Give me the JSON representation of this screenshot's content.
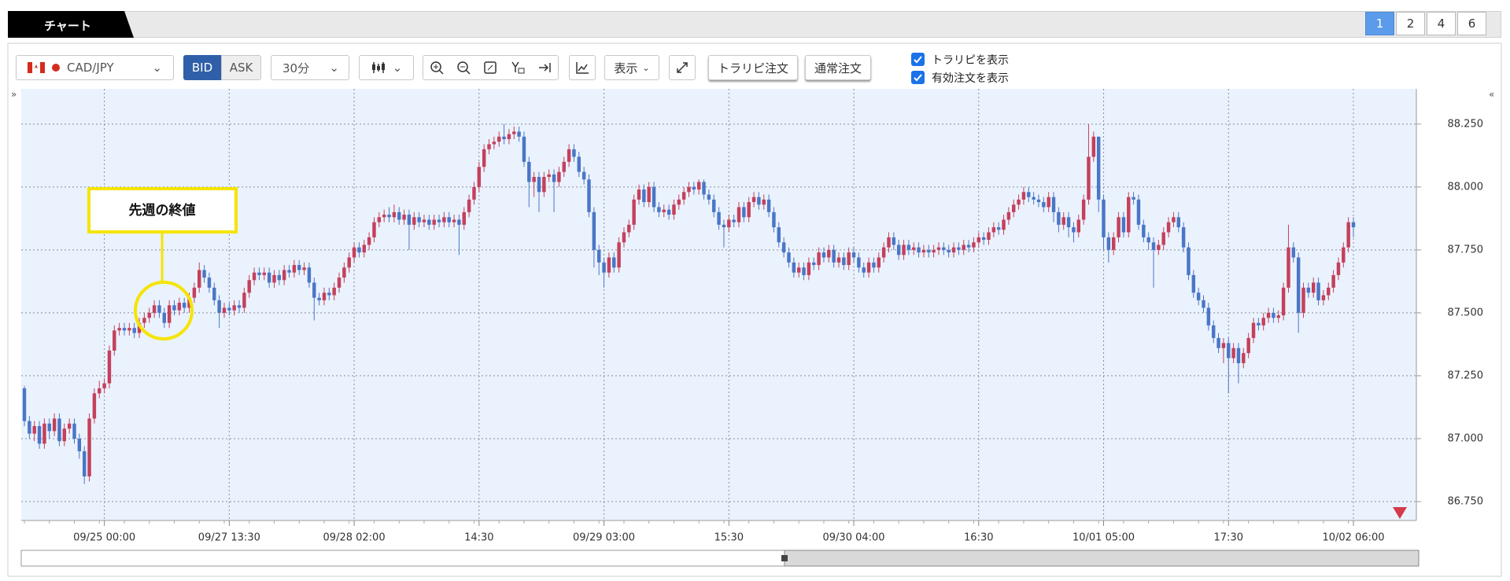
{
  "ui": {
    "tab": "チャート",
    "pages": [
      "1",
      "2",
      "4",
      "6"
    ],
    "pair": "CAD/JPY",
    "bid": "BID",
    "ask": "ASK",
    "interval": "30分",
    "display": "表示",
    "trarip_order": "トラリピ注文",
    "normal_order": "通常注文",
    "show_trarip": "トラリピを表示",
    "show_orders": "有効注文を表示"
  },
  "chart_data": {
    "type": "candlestick",
    "annotation": "先週の終値",
    "up_color": "#c4405c",
    "down_color": "#4a76c6",
    "grid": true,
    "categories": [
      null,
      null,
      null,
      null,
      null,
      null,
      null,
      null,
      null,
      null,
      null,
      null,
      null,
      null,
      null,
      null,
      "09/25 00:00",
      null,
      null,
      null,
      null,
      null,
      null,
      null,
      null,
      null,
      null,
      null,
      null,
      null,
      null,
      null,
      null,
      null,
      null,
      null,
      null,
      null,
      null,
      null,
      null,
      "09/27 13:30",
      null,
      null,
      null,
      null,
      null,
      null,
      null,
      null,
      null,
      null,
      null,
      null,
      null,
      null,
      null,
      null,
      null,
      null,
      null,
      null,
      null,
      null,
      null,
      null,
      "09/28 02:00",
      null,
      null,
      null,
      null,
      null,
      null,
      null,
      null,
      null,
      null,
      null,
      null,
      null,
      null,
      null,
      null,
      null,
      null,
      null,
      null,
      null,
      null,
      null,
      null,
      "14:30",
      null,
      null,
      null,
      null,
      null,
      null,
      null,
      null,
      null,
      null,
      null,
      null,
      null,
      null,
      null,
      null,
      null,
      null,
      null,
      null,
      null,
      null,
      null,
      null,
      "09/29 03:00",
      null,
      null,
      null,
      null,
      null,
      null,
      null,
      null,
      null,
      null,
      null,
      null,
      null,
      null,
      null,
      null,
      null,
      null,
      null,
      null,
      null,
      null,
      null,
      null,
      "15:30",
      null,
      null,
      null,
      null,
      null,
      null,
      null,
      null,
      null,
      null,
      null,
      null,
      null,
      null,
      null,
      null,
      null,
      null,
      null,
      null,
      null,
      null,
      null,
      null,
      "09/30 04:00",
      null,
      null,
      null,
      null,
      null,
      null,
      null,
      null,
      null,
      null,
      null,
      null,
      null,
      null,
      null,
      null,
      null,
      null,
      null,
      null,
      null,
      null,
      null,
      null,
      "16:30",
      null,
      null,
      null,
      null,
      null,
      null,
      null,
      null,
      null,
      null,
      null,
      null,
      null,
      null,
      null,
      null,
      null,
      null,
      null,
      null,
      null,
      null,
      null,
      null,
      "10/01 05:00",
      null,
      null,
      null,
      null,
      null,
      null,
      null,
      null,
      null,
      null,
      null,
      null,
      null,
      null,
      null,
      null,
      null,
      null,
      null,
      null,
      null,
      null,
      null,
      null,
      "17:30",
      null,
      null,
      null,
      null,
      null,
      null,
      null,
      null,
      null,
      null,
      null,
      null,
      null,
      null,
      null,
      null,
      null,
      null,
      null,
      null,
      null,
      null,
      null,
      null,
      "10/02 06:00"
    ],
    "open": [
      87.2,
      87.07,
      87.02,
      87.05,
      86.98,
      87.06,
      87.03,
      87.08,
      86.99,
      87.04,
      87.06,
      87.0,
      86.95,
      86.85,
      87.08,
      87.18,
      87.2,
      87.22,
      87.35,
      87.43,
      87.44,
      87.43,
      87.44,
      87.42,
      87.46,
      87.48,
      87.5,
      87.53,
      87.5,
      87.46,
      87.53,
      87.51,
      87.54,
      87.52,
      87.56,
      87.6,
      87.67,
      87.64,
      87.6,
      87.55,
      87.5,
      87.52,
      87.51,
      87.53,
      87.52,
      87.58,
      87.63,
      87.66,
      87.65,
      87.66,
      87.62,
      87.65,
      87.63,
      87.67,
      87.66,
      87.69,
      87.67,
      87.68,
      87.62,
      87.56,
      87.55,
      87.58,
      87.57,
      87.6,
      87.64,
      87.68,
      87.72,
      87.76,
      87.74,
      87.77,
      87.8,
      87.86,
      87.88,
      87.89,
      87.88,
      87.9,
      87.87,
      87.89,
      87.85,
      87.88,
      87.86,
      87.87,
      87.85,
      87.87,
      87.86,
      87.88,
      87.86,
      87.87,
      87.85,
      87.9,
      87.95,
      88.0,
      88.08,
      88.15,
      88.17,
      88.18,
      88.2,
      88.19,
      88.21,
      88.22,
      88.2,
      88.1,
      88.02,
      88.04,
      87.98,
      88.04,
      88.05,
      88.02,
      88.06,
      88.1,
      88.15,
      88.12,
      88.06,
      88.03,
      87.9,
      87.75,
      87.7,
      87.66,
      87.72,
      87.68,
      87.78,
      87.82,
      87.85,
      87.95,
      87.99,
      87.94,
      88.0,
      87.92,
      87.9,
      87.91,
      87.89,
      87.93,
      87.95,
      87.98,
      88.0,
      87.99,
      88.02,
      87.97,
      87.95,
      87.9,
      87.85,
      87.84,
      87.87,
      87.86,
      87.92,
      87.88,
      87.94,
      87.96,
      87.93,
      87.95,
      87.9,
      87.84,
      87.78,
      87.74,
      87.7,
      87.66,
      87.68,
      87.65,
      87.7,
      87.69,
      87.74,
      87.72,
      87.75,
      87.7,
      87.72,
      87.69,
      87.74,
      87.72,
      87.68,
      87.66,
      87.7,
      87.68,
      87.72,
      87.76,
      87.8,
      87.77,
      87.73,
      87.77,
      87.75,
      87.76,
      87.74,
      87.75,
      87.74,
      87.75,
      87.76,
      87.75,
      87.74,
      87.76,
      87.75,
      87.77,
      87.76,
      87.78,
      87.8,
      87.79,
      87.82,
      87.84,
      87.83,
      87.87,
      87.9,
      87.93,
      87.95,
      87.98,
      87.96,
      87.95,
      87.94,
      87.92,
      87.96,
      87.9,
      87.85,
      87.88,
      87.84,
      87.82,
      87.87,
      87.95,
      88.12,
      88.2,
      87.95,
      87.8,
      87.75,
      87.8,
      87.88,
      87.82,
      87.96,
      87.95,
      87.85,
      87.8,
      87.78,
      87.75,
      87.77,
      87.82,
      87.86,
      87.88,
      87.84,
      87.76,
      87.65,
      87.58,
      87.55,
      87.52,
      87.45,
      87.4,
      87.36,
      87.38,
      87.32,
      87.36,
      87.3,
      87.34,
      87.4,
      87.46,
      87.45,
      87.48,
      87.5,
      87.48,
      87.49,
      87.6,
      87.76,
      87.72,
      87.5,
      87.6,
      87.58,
      87.62,
      87.55,
      87.57,
      87.6,
      87.65,
      87.7,
      87.76,
      87.86
    ],
    "high": [
      87.21,
      87.09,
      87.07,
      87.07,
      87.08,
      87.08,
      87.1,
      87.1,
      87.06,
      87.08,
      87.08,
      87.02,
      86.97,
      87.1,
      87.2,
      87.23,
      87.24,
      87.37,
      87.45,
      87.46,
      87.46,
      87.46,
      87.46,
      87.48,
      87.5,
      87.52,
      87.55,
      87.55,
      87.52,
      87.55,
      87.55,
      87.56,
      87.56,
      87.58,
      87.62,
      87.7,
      87.69,
      87.66,
      87.62,
      87.57,
      87.54,
      87.54,
      87.55,
      87.55,
      87.6,
      87.65,
      87.68,
      87.68,
      87.68,
      87.68,
      87.67,
      87.67,
      87.69,
      87.69,
      87.71,
      87.71,
      87.7,
      87.7,
      87.64,
      87.58,
      87.6,
      87.6,
      87.62,
      87.66,
      87.7,
      87.74,
      87.78,
      87.78,
      87.79,
      87.82,
      87.88,
      87.9,
      87.91,
      87.92,
      87.93,
      87.92,
      87.91,
      87.91,
      87.9,
      87.9,
      87.89,
      87.89,
      87.89,
      87.89,
      87.9,
      87.9,
      87.89,
      87.89,
      87.92,
      87.97,
      88.02,
      88.1,
      88.17,
      88.19,
      88.2,
      88.22,
      88.25,
      88.23,
      88.24,
      88.24,
      88.22,
      88.12,
      88.06,
      88.06,
      88.06,
      88.07,
      88.07,
      88.08,
      88.12,
      88.17,
      88.17,
      88.14,
      88.08,
      88.05,
      87.92,
      87.77,
      87.72,
      87.74,
      87.74,
      87.8,
      87.84,
      87.87,
      87.97,
      88.01,
      88.01,
      88.02,
      88.02,
      87.94,
      87.93,
      87.93,
      87.95,
      87.97,
      88.0,
      88.02,
      88.02,
      88.03,
      88.03,
      87.99,
      87.97,
      87.92,
      87.87,
      87.89,
      87.89,
      87.94,
      87.94,
      87.96,
      87.98,
      87.98,
      87.97,
      87.97,
      87.92,
      87.86,
      87.8,
      87.76,
      87.72,
      87.7,
      87.7,
      87.72,
      87.72,
      87.76,
      87.76,
      87.77,
      87.77,
      87.74,
      87.74,
      87.76,
      87.76,
      87.74,
      87.7,
      87.72,
      87.72,
      87.74,
      87.78,
      87.82,
      87.82,
      87.79,
      87.79,
      87.79,
      87.78,
      87.78,
      87.77,
      87.77,
      87.77,
      87.78,
      87.78,
      87.77,
      87.78,
      87.78,
      87.79,
      87.79,
      87.8,
      87.82,
      87.82,
      87.84,
      87.86,
      87.86,
      87.89,
      87.92,
      87.95,
      87.97,
      88.0,
      88.0,
      87.98,
      87.97,
      87.96,
      87.98,
      87.98,
      87.92,
      87.9,
      87.9,
      87.86,
      87.89,
      87.97,
      88.25,
      88.22,
      88.2,
      87.97,
      87.82,
      87.82,
      87.9,
      87.9,
      87.98,
      87.98,
      87.97,
      87.87,
      87.82,
      87.8,
      87.79,
      87.84,
      87.88,
      87.9,
      87.9,
      87.86,
      87.78,
      87.67,
      87.6,
      87.57,
      87.54,
      87.47,
      87.42,
      87.4,
      87.4,
      87.38,
      87.38,
      87.36,
      87.42,
      87.48,
      87.48,
      87.5,
      87.52,
      87.52,
      87.51,
      87.62,
      87.85,
      87.78,
      87.74,
      87.62,
      87.62,
      87.64,
      87.64,
      87.59,
      87.62,
      87.67,
      87.72,
      87.78,
      87.88,
      87.88
    ],
    "low": [
      87.05,
      87.0,
      86.99,
      86.96,
      86.96,
      87.0,
      87.01,
      86.97,
      86.97,
      87.02,
      86.98,
      86.92,
      86.82,
      86.83,
      87.06,
      87.16,
      87.18,
      87.2,
      87.33,
      87.41,
      87.41,
      87.41,
      87.4,
      87.4,
      87.44,
      87.46,
      87.48,
      87.48,
      87.44,
      87.44,
      87.49,
      87.49,
      87.5,
      87.5,
      87.54,
      87.58,
      87.62,
      87.58,
      87.53,
      87.44,
      87.48,
      87.49,
      87.49,
      87.5,
      87.5,
      87.56,
      87.61,
      87.63,
      87.63,
      87.6,
      87.6,
      87.61,
      87.61,
      87.64,
      87.64,
      87.65,
      87.65,
      87.6,
      87.47,
      87.53,
      87.53,
      87.55,
      87.55,
      87.58,
      87.62,
      87.66,
      87.7,
      87.72,
      87.72,
      87.75,
      87.78,
      87.84,
      87.86,
      87.86,
      87.86,
      87.85,
      87.85,
      87.75,
      87.83,
      87.84,
      87.84,
      87.83,
      87.83,
      87.84,
      87.84,
      87.84,
      87.84,
      87.73,
      87.83,
      87.88,
      87.93,
      87.98,
      88.06,
      88.13,
      88.15,
      88.16,
      88.17,
      88.17,
      88.19,
      88.18,
      88.08,
      87.92,
      87.96,
      87.9,
      87.96,
      88.02,
      87.9,
      88.0,
      88.04,
      88.08,
      88.1,
      88.04,
      88.01,
      87.88,
      87.68,
      87.65,
      87.6,
      87.64,
      87.66,
      87.66,
      87.76,
      87.8,
      87.83,
      87.93,
      87.92,
      87.92,
      87.9,
      87.88,
      87.88,
      87.87,
      87.87,
      87.91,
      87.93,
      87.96,
      87.97,
      87.97,
      87.95,
      87.93,
      87.88,
      87.83,
      87.76,
      87.82,
      87.84,
      87.84,
      87.86,
      87.86,
      87.92,
      87.91,
      87.91,
      87.88,
      87.82,
      87.76,
      87.72,
      87.68,
      87.64,
      87.64,
      87.63,
      87.63,
      87.67,
      87.67,
      87.7,
      87.7,
      87.68,
      87.68,
      87.67,
      87.67,
      87.7,
      87.66,
      87.64,
      87.64,
      87.66,
      87.66,
      87.7,
      87.74,
      87.75,
      87.71,
      87.71,
      87.73,
      87.73,
      87.72,
      87.72,
      87.72,
      87.72,
      87.73,
      87.73,
      87.72,
      87.72,
      87.73,
      87.73,
      87.74,
      87.74,
      87.76,
      87.77,
      87.77,
      87.8,
      87.81,
      87.81,
      87.85,
      87.88,
      87.91,
      87.93,
      87.94,
      87.93,
      87.92,
      87.9,
      87.9,
      87.86,
      87.82,
      87.83,
      87.8,
      87.78,
      87.8,
      87.85,
      87.93,
      88.1,
      87.9,
      87.75,
      87.7,
      87.73,
      87.78,
      87.8,
      87.8,
      87.93,
      87.83,
      87.78,
      87.75,
      87.6,
      87.73,
      87.75,
      87.8,
      87.84,
      87.82,
      87.74,
      87.63,
      87.56,
      87.53,
      87.5,
      87.43,
      87.38,
      87.34,
      87.3,
      87.18,
      87.3,
      87.22,
      87.28,
      87.32,
      87.38,
      87.43,
      87.43,
      87.46,
      87.46,
      87.46,
      87.47,
      87.58,
      87.7,
      87.42,
      87.48,
      87.56,
      87.56,
      87.53,
      87.53,
      87.55,
      87.58,
      87.63,
      87.68,
      87.74,
      87.8
    ],
    "close": [
      87.07,
      87.02,
      87.05,
      86.98,
      87.06,
      87.03,
      87.08,
      86.99,
      87.04,
      87.06,
      87.0,
      86.95,
      86.85,
      87.08,
      87.18,
      87.2,
      87.22,
      87.35,
      87.43,
      87.44,
      87.43,
      87.44,
      87.42,
      87.46,
      87.48,
      87.5,
      87.53,
      87.5,
      87.46,
      87.53,
      87.51,
      87.54,
      87.52,
      87.56,
      87.6,
      87.67,
      87.64,
      87.6,
      87.55,
      87.5,
      87.52,
      87.51,
      87.53,
      87.52,
      87.58,
      87.63,
      87.66,
      87.65,
      87.66,
      87.62,
      87.65,
      87.63,
      87.67,
      87.66,
      87.69,
      87.67,
      87.68,
      87.62,
      87.56,
      87.55,
      87.58,
      87.57,
      87.6,
      87.64,
      87.68,
      87.72,
      87.76,
      87.74,
      87.77,
      87.8,
      87.86,
      87.88,
      87.89,
      87.88,
      87.9,
      87.87,
      87.89,
      87.85,
      87.88,
      87.86,
      87.87,
      87.85,
      87.87,
      87.86,
      87.88,
      87.86,
      87.87,
      87.85,
      87.9,
      87.95,
      88.0,
      88.08,
      88.15,
      88.17,
      88.18,
      88.2,
      88.19,
      88.21,
      88.22,
      88.2,
      88.1,
      88.02,
      88.04,
      87.98,
      88.04,
      88.05,
      88.02,
      88.06,
      88.1,
      88.15,
      88.12,
      88.06,
      88.03,
      87.9,
      87.75,
      87.7,
      87.66,
      87.72,
      87.68,
      87.78,
      87.82,
      87.85,
      87.95,
      87.99,
      87.94,
      88.0,
      87.92,
      87.9,
      87.91,
      87.89,
      87.93,
      87.95,
      87.98,
      88.0,
      87.99,
      88.02,
      87.97,
      87.95,
      87.9,
      87.85,
      87.84,
      87.87,
      87.86,
      87.92,
      87.88,
      87.94,
      87.96,
      87.93,
      87.95,
      87.9,
      87.84,
      87.78,
      87.74,
      87.7,
      87.66,
      87.68,
      87.65,
      87.7,
      87.69,
      87.74,
      87.72,
      87.75,
      87.7,
      87.72,
      87.69,
      87.74,
      87.72,
      87.68,
      87.66,
      87.7,
      87.68,
      87.72,
      87.76,
      87.8,
      87.77,
      87.73,
      87.77,
      87.75,
      87.76,
      87.74,
      87.75,
      87.74,
      87.75,
      87.76,
      87.75,
      87.74,
      87.76,
      87.75,
      87.77,
      87.76,
      87.78,
      87.8,
      87.79,
      87.82,
      87.84,
      87.83,
      87.87,
      87.9,
      87.93,
      87.95,
      87.98,
      87.96,
      87.95,
      87.94,
      87.92,
      87.96,
      87.9,
      87.85,
      87.88,
      87.84,
      87.82,
      87.87,
      87.95,
      88.12,
      88.2,
      87.95,
      87.8,
      87.75,
      87.8,
      87.88,
      87.82,
      87.96,
      87.95,
      87.85,
      87.8,
      87.78,
      87.75,
      87.77,
      87.82,
      87.86,
      87.88,
      87.84,
      87.76,
      87.65,
      87.58,
      87.55,
      87.52,
      87.45,
      87.4,
      87.36,
      87.38,
      87.32,
      87.36,
      87.3,
      87.34,
      87.4,
      87.46,
      87.45,
      87.48,
      87.5,
      87.48,
      87.49,
      87.6,
      87.76,
      87.72,
      87.5,
      87.6,
      87.58,
      87.62,
      87.55,
      87.57,
      87.6,
      87.65,
      87.7,
      87.76,
      87.86,
      87.84
    ],
    "ylim": [
      86.675,
      88.39
    ],
    "yticks": [
      {
        "value": 86.75,
        "label": "86.750"
      },
      {
        "value": 87,
        "label": "87.000"
      },
      {
        "value": 87.25,
        "label": "87.250"
      },
      {
        "value": 87.5,
        "label": "87.500"
      },
      {
        "value": 87.75,
        "label": "87.750"
      },
      {
        "value": 88,
        "label": "88.000"
      },
      {
        "value": 88.25,
        "label": "88.250"
      }
    ]
  }
}
